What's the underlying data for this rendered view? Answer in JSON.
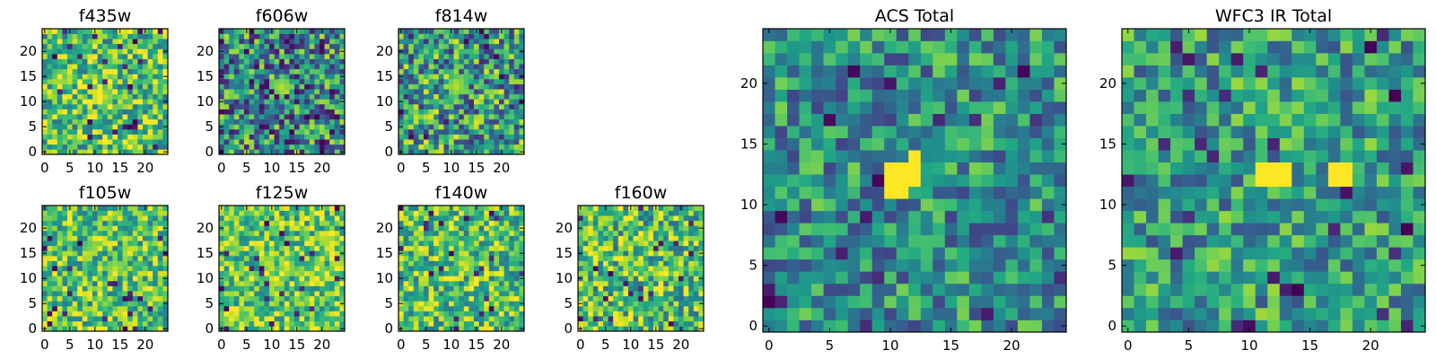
{
  "figure": {
    "title": ""
  },
  "chart_data": [
    {
      "type": "heatmap",
      "title": "f435w",
      "xlim": [
        0,
        24
      ],
      "ylim": [
        0,
        24
      ],
      "xticks": [
        "0",
        "5",
        "10",
        "15",
        "20"
      ],
      "yticks": [
        "0",
        "5",
        "10",
        "15",
        "20"
      ],
      "colormap": "viridis"
    },
    {
      "type": "heatmap",
      "title": "f606w",
      "xlim": [
        0,
        24
      ],
      "ylim": [
        0,
        24
      ],
      "xticks": [
        "0",
        "5",
        "10",
        "15",
        "20"
      ],
      "yticks": [
        "0",
        "5",
        "10",
        "15",
        "20"
      ],
      "colormap": "viridis"
    },
    {
      "type": "heatmap",
      "title": "f814w",
      "xlim": [
        0,
        24
      ],
      "ylim": [
        0,
        24
      ],
      "xticks": [
        "0",
        "5",
        "10",
        "15",
        "20"
      ],
      "yticks": [
        "0",
        "5",
        "10",
        "15",
        "20"
      ],
      "colormap": "viridis"
    },
    {
      "type": "heatmap",
      "title": "f105w",
      "xlim": [
        0,
        24
      ],
      "ylim": [
        0,
        24
      ],
      "xticks": [
        "0",
        "5",
        "10",
        "15",
        "20"
      ],
      "yticks": [
        "0",
        "5",
        "10",
        "15",
        "20"
      ],
      "colormap": "viridis"
    },
    {
      "type": "heatmap",
      "title": "f125w",
      "xlim": [
        0,
        24
      ],
      "ylim": [
        0,
        24
      ],
      "xticks": [
        "0",
        "5",
        "10",
        "15",
        "20"
      ],
      "yticks": [
        "0",
        "5",
        "10",
        "15",
        "20"
      ],
      "colormap": "viridis"
    },
    {
      "type": "heatmap",
      "title": "f140w",
      "xlim": [
        0,
        24
      ],
      "ylim": [
        0,
        24
      ],
      "xticks": [
        "0",
        "5",
        "10",
        "15",
        "20"
      ],
      "yticks": [
        "0",
        "5",
        "10",
        "15",
        "20"
      ],
      "colormap": "viridis"
    },
    {
      "type": "heatmap",
      "title": "f160w",
      "xlim": [
        0,
        24
      ],
      "ylim": [
        0,
        24
      ],
      "xticks": [
        "0",
        "5",
        "10",
        "15",
        "20"
      ],
      "yticks": [
        "0",
        "5",
        "10",
        "15",
        "20"
      ],
      "colormap": "viridis"
    },
    {
      "type": "heatmap",
      "title": "ACS Total",
      "xlim": [
        0,
        24
      ],
      "ylim": [
        0,
        24
      ],
      "xticks": [
        "0",
        "5",
        "10",
        "15",
        "20"
      ],
      "yticks": [
        "0",
        "5",
        "10",
        "15",
        "20"
      ],
      "colormap": "viridis",
      "bright_cells_xy": [
        [
          10,
          12
        ],
        [
          11,
          12
        ],
        [
          12,
          12
        ],
        [
          10,
          13
        ],
        [
          11,
          13
        ],
        [
          12,
          13
        ],
        [
          11,
          11
        ],
        [
          12,
          14
        ],
        [
          10,
          11
        ]
      ]
    },
    {
      "type": "heatmap",
      "title": "WFC3 IR Total",
      "xlim": [
        0,
        24
      ],
      "ylim": [
        0,
        24
      ],
      "xticks": [
        "0",
        "5",
        "10",
        "15",
        "20"
      ],
      "yticks": [
        "0",
        "5",
        "10",
        "15",
        "20"
      ],
      "colormap": "viridis",
      "bright_cells_xy": [
        [
          11,
          12
        ],
        [
          12,
          12
        ],
        [
          13,
          12
        ],
        [
          11,
          13
        ],
        [
          12,
          13
        ],
        [
          13,
          13
        ],
        [
          17,
          12
        ],
        [
          18,
          12
        ],
        [
          17,
          13
        ],
        [
          18,
          13
        ]
      ]
    }
  ]
}
